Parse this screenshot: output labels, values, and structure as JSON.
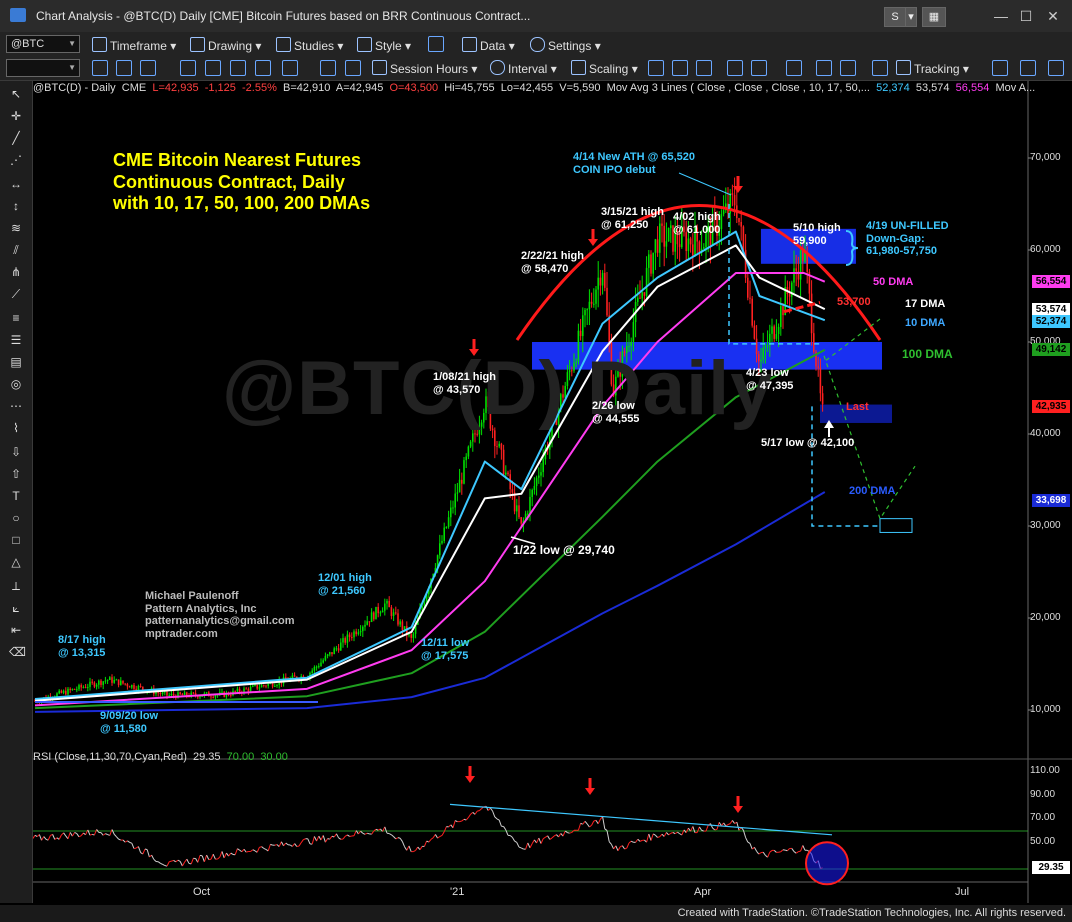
{
  "window": {
    "title": "Chart Analysis - @BTC(D) Daily [CME] Bitcoin Futures based on BRR Continuous Contract...",
    "s_button": "S",
    "close_icon": "close-icon"
  },
  "toolbar1": {
    "symbol": "@BTC",
    "menus": [
      "Timeframe",
      "Drawing",
      "Studies",
      "Style",
      "Data",
      "Settings"
    ]
  },
  "toolbar2": {
    "menus": [
      "Session Hours",
      "Interval",
      "Scaling",
      "Tracking"
    ]
  },
  "legend": {
    "symbol": "@BTC(D) - Daily",
    "exchange": "CME",
    "last": "L=42,935",
    "change": "-1,125",
    "pct": "-2.55%",
    "bid": "B=42,910",
    "ask": "A=42,945",
    "open": "O=43,500",
    "hi": "Hi=45,755",
    "lo": "Lo=42,455",
    "vol": "V=5,590",
    "ma": "Mov Avg 3 Lines ( Close , Close , Close , 10, 17, 50,...",
    "ma1": "52,374",
    "ma2": "53,574",
    "ma3": "56,554",
    "tail": "Mov A..."
  },
  "rsi_legend": {
    "label": "RSI (Close,11,30,70,Cyan,Red)",
    "v1": "29.35",
    "v2": "70.00",
    "v3": "30.00"
  },
  "footer": "Created with TradeStation. ©TradeStation Technologies, Inc. All rights reserved.",
  "watermark": "@BTC(D) Daily",
  "annotations": {
    "title_block": [
      "CME Bitcoin Nearest Futures",
      "Continuous Contract, Daily",
      "with 10, 17, 50, 100, 200 DMAs"
    ],
    "author": [
      "Michael Paulenoff",
      "Pattern Analytics, Inc",
      "patternanalytics@gmail.com",
      "mptrader.com"
    ],
    "aug17": [
      "8/17 high",
      "@ 13,315"
    ],
    "sep09": [
      "9/09/20 low",
      "@ 11,580"
    ],
    "dec01": [
      "12/01 high",
      "@ 21,560"
    ],
    "dec11": [
      "12/11 low",
      "@ 17,575"
    ],
    "jan08": [
      "1/08/21 high",
      "@ 43,570"
    ],
    "jan22": "1/22 low @ 29,740",
    "feb22": [
      "2/22/21 high",
      "@ 58,470"
    ],
    "mar15": [
      "3/15/21 high",
      "@ 61,250"
    ],
    "feb26": [
      "2/26 low",
      "@ 44,555"
    ],
    "apr02": [
      "4/02 high",
      "@ 61,000"
    ],
    "apr14": [
      "4/14 New ATH @ 65,520",
      "COIN IPO debut"
    ],
    "may10": [
      "5/10 high",
      "59,900"
    ],
    "apr19": [
      "4/19 UN-FILLED",
      "Down-Gap:",
      "61,980-57,750"
    ],
    "apr23": [
      "4/23 low",
      "@ 47,395"
    ],
    "may17": "5/17 low @ 42,100",
    "dma50": "50 DMA",
    "dma17": "17 DMA",
    "dma10": "10 DMA",
    "dma100": "100 DMA",
    "dma200": "200 DMA",
    "lvl53700": "53,700",
    "last_word": "Last"
  },
  "price_labels": {
    "ma50": "56,554",
    "ma17": "53,574",
    "ma10": "52,374",
    "ma100": "49,142",
    "last": "42,935",
    "ma200": "33,698",
    "rsi": "29.35"
  },
  "colors": {
    "up": "#00e000",
    "down": "#ff2020",
    "ma10": "#3ec8ff",
    "ma17": "#ffffff",
    "ma50": "#ff3cf0",
    "ma100": "#1f9f1f",
    "ma200": "#1a2bd6",
    "rsi_up": "#ff2020",
    "rsi_down": "#cfcfcf"
  },
  "chart_data": {
    "type": "line",
    "title": "",
    "x_axis": {
      "tick_labels": [
        "Oct",
        "'21",
        "Apr",
        "Jul"
      ]
    },
    "y_axis": {
      "tick_labels": [
        "10,000",
        "20,000",
        "30,000",
        "40,000",
        "50,000",
        "60,000",
        "70,000"
      ],
      "range": [
        5000,
        73500
      ]
    },
    "rsi_axis": {
      "tick_labels": [
        "110.00",
        "90.00",
        "70.00",
        "50.00",
        "30.00"
      ],
      "range": [
        10,
        115
      ]
    },
    "series": [
      {
        "name": "Close",
        "x": [
          "2020-07-20",
          "2020-08-17",
          "2020-09-09",
          "2020-10-01",
          "2020-11-01",
          "2020-12-01",
          "2020-12-11",
          "2021-01-08",
          "2021-01-22",
          "2021-02-22",
          "2021-02-26",
          "2021-03-15",
          "2021-04-02",
          "2021-04-14",
          "2021-04-23",
          "2021-05-10",
          "2021-05-17",
          "2021-05-18"
        ],
        "values": [
          11000,
          13315,
          11580,
          11700,
          13800,
          21560,
          17575,
          43570,
          29740,
          58470,
          44555,
          61250,
          61000,
          65520,
          47395,
          59900,
          42100,
          42935
        ]
      },
      {
        "name": "10 DMA",
        "x": [
          "2020-07-20",
          "2020-11-01",
          "2020-12-11",
          "2021-01-08",
          "2021-01-22",
          "2021-02-22",
          "2021-03-15",
          "2021-04-14",
          "2021-04-23",
          "2021-05-18"
        ],
        "values": [
          11200,
          13500,
          19000,
          37000,
          34000,
          52000,
          57000,
          62000,
          55000,
          52374
        ]
      },
      {
        "name": "17 DMA",
        "x": [
          "2020-07-20",
          "2020-11-01",
          "2020-12-11",
          "2021-01-08",
          "2021-01-22",
          "2021-02-22",
          "2021-03-15",
          "2021-04-14",
          "2021-04-23",
          "2021-05-18"
        ],
        "values": [
          11000,
          13300,
          18500,
          33000,
          33500,
          49000,
          56000,
          60500,
          57000,
          53574
        ]
      },
      {
        "name": "50 DMA",
        "x": [
          "2020-07-20",
          "2020-11-01",
          "2020-12-11",
          "2021-01-08",
          "2021-02-22",
          "2021-03-15",
          "2021-04-14",
          "2021-05-10",
          "2021-05-18"
        ],
        "values": [
          10500,
          12300,
          16500,
          24000,
          43000,
          50000,
          57500,
          57500,
          56554
        ]
      },
      {
        "name": "100 DMA",
        "x": [
          "2020-07-20",
          "2020-11-01",
          "2020-12-11",
          "2021-01-08",
          "2021-02-22",
          "2021-03-15",
          "2021-04-14",
          "2021-05-18"
        ],
        "values": [
          10200,
          11500,
          14000,
          18500,
          31000,
          37000,
          44000,
          49142
        ]
      },
      {
        "name": "200 DMA",
        "x": [
          "2020-07-20",
          "2020-11-01",
          "2020-12-11",
          "2021-01-08",
          "2021-02-22",
          "2021-03-15",
          "2021-04-14",
          "2021-05-18"
        ],
        "values": [
          9800,
          10200,
          11400,
          13500,
          20500,
          23500,
          28000,
          33698
        ]
      }
    ],
    "rsi": {
      "x": [
        "2020-07-20",
        "2020-08-17",
        "2020-09-09",
        "2020-10-01",
        "2020-12-01",
        "2020-12-11",
        "2021-01-08",
        "2021-01-22",
        "2021-02-22",
        "2021-02-26",
        "2021-03-15",
        "2021-04-14",
        "2021-04-23",
        "2021-05-10",
        "2021-05-18"
      ],
      "values": [
        62,
        70,
        34,
        46,
        72,
        48,
        97,
        52,
        83,
        50,
        66,
        78,
        44,
        52,
        29.35
      ]
    },
    "levels": {
      "gap_top": 61980,
      "gap_bottom": 57750,
      "may17_low": 42100,
      "level_53700": 53700,
      "projection_low": 30000
    }
  }
}
